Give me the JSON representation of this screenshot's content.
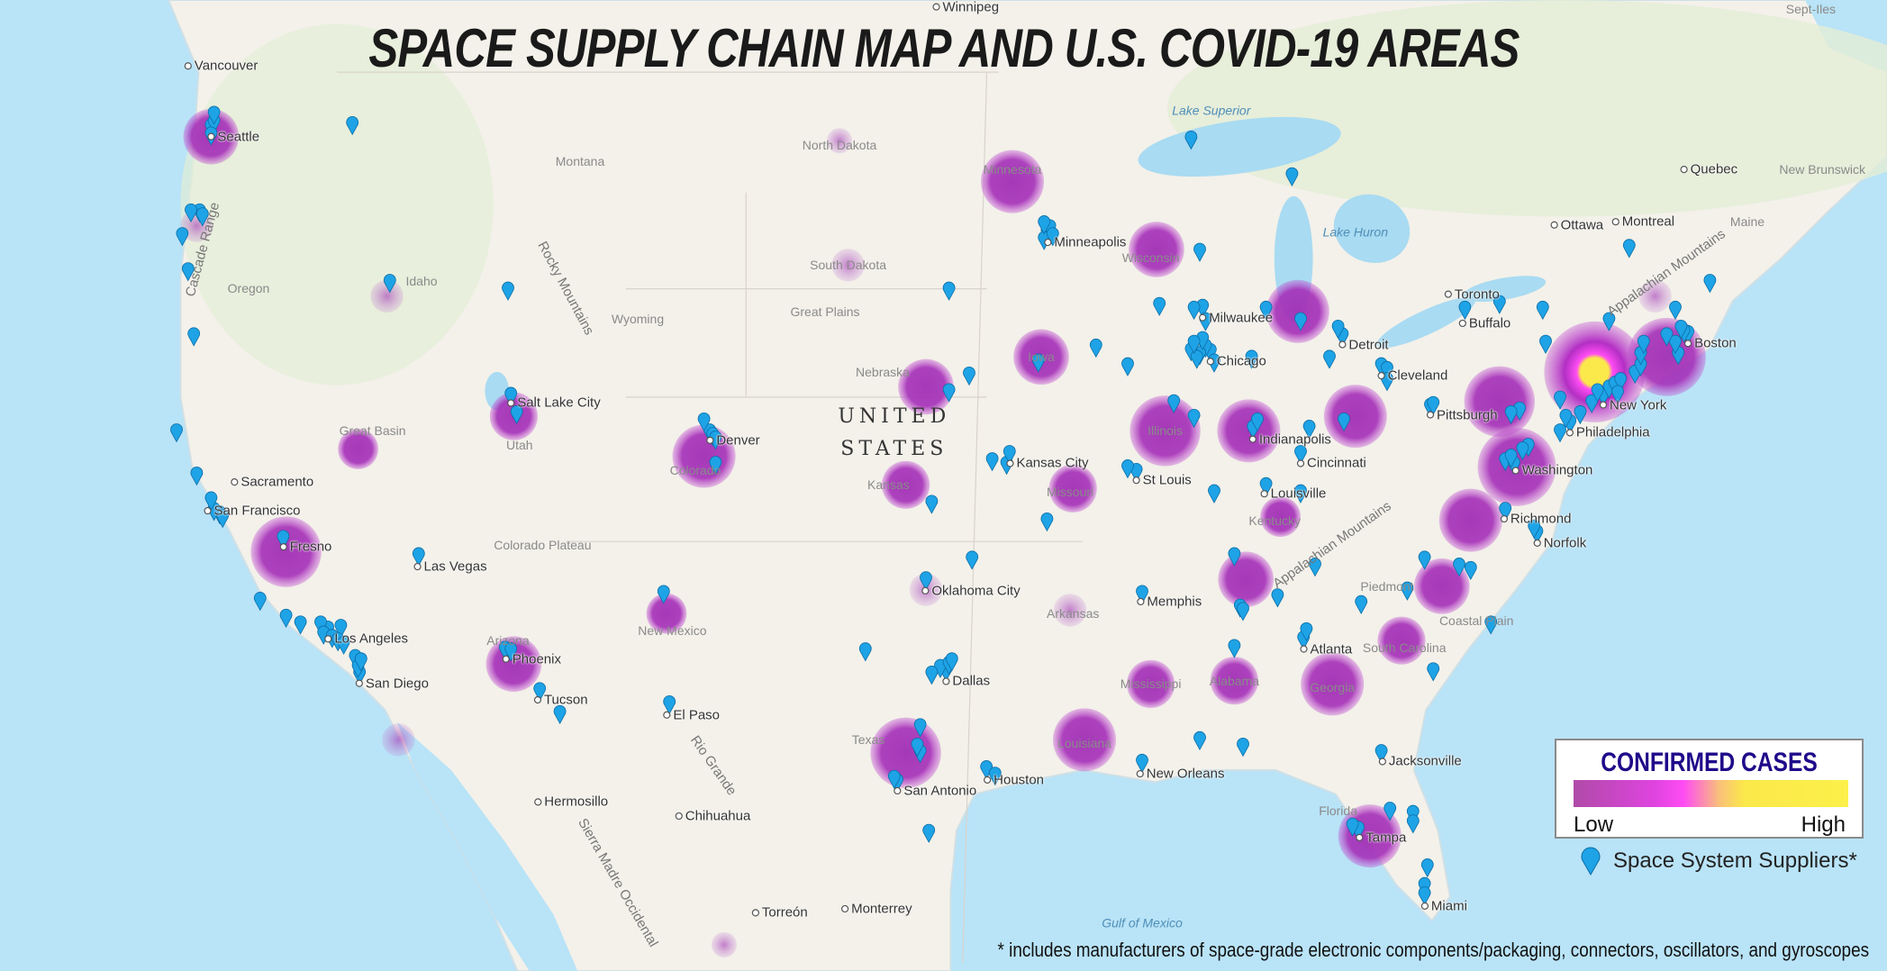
{
  "title": "SPACE SUPPLY CHAIN MAP AND U.S. COVID-19 AREAS",
  "legend": {
    "title": "CONFIRMED CASES",
    "low_label": "Low",
    "high_label": "High",
    "gradient_colors": [
      "#b04aa8",
      "#ff4cf4",
      "#fbe84a"
    ],
    "supplier_label": "Space System Suppliers*",
    "supplier_icon": "map-pin-icon",
    "supplier_color": "#1ea3e6"
  },
  "footnote": "* includes manufacturers of space-grade electronic components/packaging, connectors, oscillators, and gyroscopes",
  "colors": {
    "ocean": "#b9e3f7",
    "land": "#f3f1ea",
    "bubble": "#a02fb4",
    "bubble_hot": "#fbe84a",
    "pin": "#1ea3e6"
  },
  "covid_areas": [
    {
      "lat": 47.6,
      "lon": -122.3,
      "level": 4
    },
    {
      "lat": 45.4,
      "lon": -122.8,
      "level": 1
    },
    {
      "lat": 43.6,
      "lon": -116.2,
      "level": 1
    },
    {
      "lat": 47.5,
      "lon": -100.5,
      "level": 0
    },
    {
      "lat": 44.4,
      "lon": -100.2,
      "level": 1
    },
    {
      "lat": 46.5,
      "lon": -94.5,
      "level": 5
    },
    {
      "lat": 44.8,
      "lon": -89.5,
      "level": 4
    },
    {
      "lat": 43.2,
      "lon": -84.6,
      "level": 5
    },
    {
      "lat": 42,
      "lon": -93.5,
      "level": 4
    },
    {
      "lat": 41.2,
      "lon": -97.5,
      "level": 4
    },
    {
      "lat": 40,
      "lon": -89.2,
      "level": 6
    },
    {
      "lat": 40,
      "lon": -86.3,
      "level": 5
    },
    {
      "lat": 40.4,
      "lon": -82.6,
      "level": 5
    },
    {
      "lat": 40.8,
      "lon": -77.6,
      "level": 6
    },
    {
      "lat": 41.6,
      "lon": -74.3,
      "level": 10
    },
    {
      "lat": 42,
      "lon": -71.8,
      "level": 7
    },
    {
      "lat": 43.6,
      "lon": -72.2,
      "level": 1
    },
    {
      "lat": 39,
      "lon": -77,
      "level": 7
    },
    {
      "lat": 37.5,
      "lon": -78.6,
      "level": 5
    },
    {
      "lat": 35.6,
      "lon": -79.6,
      "level": 4
    },
    {
      "lat": 34,
      "lon": -81,
      "level": 3
    },
    {
      "lat": 32.7,
      "lon": -83.4,
      "level": 5
    },
    {
      "lat": 28,
      "lon": -82.1,
      "level": 5
    },
    {
      "lat": 32.8,
      "lon": -86.8,
      "level": 3
    },
    {
      "lat": 32.7,
      "lon": -89.7,
      "level": 3
    },
    {
      "lat": 31,
      "lon": -92,
      "level": 5
    },
    {
      "lat": 35.8,
      "lon": -86.4,
      "level": 4
    },
    {
      "lat": 37.6,
      "lon": -85.2,
      "level": 2
    },
    {
      "lat": 38.4,
      "lon": -92.4,
      "level": 3
    },
    {
      "lat": 38.5,
      "lon": -98.2,
      "level": 3
    },
    {
      "lat": 35.5,
      "lon": -97.5,
      "level": 1
    },
    {
      "lat": 34.9,
      "lon": -92.5,
      "level": 1
    },
    {
      "lat": 30.6,
      "lon": -98.2,
      "level": 6
    },
    {
      "lat": 39.3,
      "lon": -105.2,
      "level": 5
    },
    {
      "lat": 40.4,
      "lon": -111.8,
      "level": 3
    },
    {
      "lat": 39.5,
      "lon": -117.2,
      "level": 2
    },
    {
      "lat": 36.6,
      "lon": -119.7,
      "level": 6
    },
    {
      "lat": 33.3,
      "lon": -111.8,
      "level": 4
    },
    {
      "lat": 34.8,
      "lon": -106.5,
      "level": 2
    },
    {
      "lat": 31,
      "lon": -115.8,
      "level": 1
    },
    {
      "lat": 24.5,
      "lon": -104.5,
      "level": 0
    }
  ],
  "suppliers": [
    [
      47.6,
      -122.3
    ],
    [
      47.7,
      -122.2
    ],
    [
      47.4,
      -122.3
    ],
    [
      47.9,
      -122.2
    ],
    [
      47.65,
      -117.4
    ],
    [
      45.5,
      -122.7
    ],
    [
      45.5,
      -123
    ],
    [
      45.4,
      -122.6
    ],
    [
      44.9,
      -123.3
    ],
    [
      44,
      -123.1
    ],
    [
      42.3,
      -122.9
    ],
    [
      43.7,
      -116.1
    ],
    [
      43.5,
      -112
    ],
    [
      40.7,
      -111.9
    ],
    [
      40.2,
      -111.7
    ],
    [
      39.7,
      -105
    ],
    [
      40,
      -105.2
    ],
    [
      39.6,
      -104.9
    ],
    [
      38.8,
      -104.8
    ],
    [
      39.5,
      -104.8
    ],
    [
      39.7,
      -123.5
    ],
    [
      38.5,
      -122.8
    ],
    [
      37.4,
      -122
    ],
    [
      37.5,
      -122.2
    ],
    [
      37.8,
      -122.3
    ],
    [
      37.3,
      -121.9
    ],
    [
      36.7,
      -119.8
    ],
    [
      34.9,
      -120.6
    ],
    [
      34.05,
      -118.25
    ],
    [
      34.2,
      -118.5
    ],
    [
      33.9,
      -118.4
    ],
    [
      33.8,
      -118.1
    ],
    [
      34.1,
      -117.8
    ],
    [
      33.7,
      -117.9
    ],
    [
      33.6,
      -117.7
    ],
    [
      34.4,
      -119.7
    ],
    [
      34.2,
      -119.2
    ],
    [
      33.2,
      -117.3
    ],
    [
      32.7,
      -117.15
    ],
    [
      32.9,
      -117.2
    ],
    [
      33.1,
      -117.1
    ],
    [
      33.45,
      -112.1
    ],
    [
      33.4,
      -111.9
    ],
    [
      32.2,
      -110.9
    ],
    [
      31.5,
      -110.2
    ],
    [
      36.2,
      -115.1
    ],
    [
      35.1,
      -106.6
    ],
    [
      31.8,
      -106.4
    ],
    [
      33.4,
      -99.6
    ],
    [
      32.8,
      -96.8
    ],
    [
      32.9,
      -97
    ],
    [
      33,
      -96.7
    ],
    [
      32.7,
      -97.3
    ],
    [
      33.1,
      -96.6
    ],
    [
      30.3,
      -97.7
    ],
    [
      30.5,
      -97.8
    ],
    [
      29.4,
      -98.5
    ],
    [
      29.5,
      -98.6
    ],
    [
      29.8,
      -95.4
    ],
    [
      29.6,
      -95.1
    ],
    [
      27.8,
      -97.4
    ],
    [
      31.1,
      -97.7
    ],
    [
      35.5,
      -97.5
    ],
    [
      36.1,
      -95.9
    ],
    [
      38.8,
      -94.7
    ],
    [
      39.1,
      -94.6
    ],
    [
      37.7,
      -97.3
    ],
    [
      38.9,
      -95.2
    ],
    [
      41.25,
      -96
    ],
    [
      40.8,
      -96.7
    ],
    [
      41.6,
      -93.6
    ],
    [
      42,
      -91.6
    ],
    [
      44.98,
      -93.3
    ],
    [
      45.1,
      -93.2
    ],
    [
      44.8,
      -93.4
    ],
    [
      44.9,
      -93.1
    ],
    [
      45.2,
      -93.4
    ],
    [
      43.5,
      -96.7
    ],
    [
      43.1,
      -89.4
    ],
    [
      43.05,
      -87.9
    ],
    [
      43,
      -88.2
    ],
    [
      42.7,
      -87.8
    ],
    [
      44.5,
      -88
    ],
    [
      42.3,
      -83.05
    ],
    [
      42.5,
      -83.2
    ],
    [
      42.7,
      -84.5
    ],
    [
      43,
      -85.7
    ],
    [
      47.3,
      -88.3
    ],
    [
      46.4,
      -84.8
    ],
    [
      41.88,
      -87.63
    ],
    [
      42,
      -87.8
    ],
    [
      41.8,
      -88
    ],
    [
      41.9,
      -88.3
    ],
    [
      41.6,
      -87.5
    ],
    [
      42.2,
      -87.9
    ],
    [
      41.7,
      -88.1
    ],
    [
      42.1,
      -88.2
    ],
    [
      40.5,
      -88.9
    ],
    [
      40.1,
      -88.2
    ],
    [
      41.5,
      -90.5
    ],
    [
      39.8,
      -86.15
    ],
    [
      40,
      -86
    ],
    [
      41.7,
      -86.2
    ],
    [
      38,
      -87.5
    ],
    [
      39.1,
      -84.5
    ],
    [
      39.8,
      -84.2
    ],
    [
      41.5,
      -81.7
    ],
    [
      41.4,
      -81.5
    ],
    [
      40,
      -83
    ],
    [
      41.1,
      -81.5
    ],
    [
      41.7,
      -83.5
    ],
    [
      38.6,
      -90.2
    ],
    [
      38.7,
      -90.5
    ],
    [
      37.2,
      -93.3
    ],
    [
      38.2,
      -85.7
    ],
    [
      38,
      -84.5
    ],
    [
      35.1,
      -90
    ],
    [
      36.2,
      -86.8
    ],
    [
      35.9,
      -84
    ],
    [
      35,
      -85.3
    ],
    [
      34.7,
      -86.6
    ],
    [
      34.6,
      -86.5
    ],
    [
      33.5,
      -86.8
    ],
    [
      30.7,
      -88
    ],
    [
      33.75,
      -84.4
    ],
    [
      34,
      -84.3
    ],
    [
      30,
      -90
    ],
    [
      30.5,
      -86.5
    ],
    [
      28.5,
      -81.4
    ],
    [
      28.4,
      -80.6
    ],
    [
      28.1,
      -80.6
    ],
    [
      27.9,
      -82.5
    ],
    [
      28,
      -82.7
    ],
    [
      26.7,
      -80.1
    ],
    [
      26.1,
      -80.2
    ],
    [
      25.8,
      -80.2
    ],
    [
      30.3,
      -81.7
    ],
    [
      35.2,
      -80.8
    ],
    [
      35.8,
      -78.6
    ],
    [
      35.9,
      -79
    ],
    [
      36.1,
      -80.2
    ],
    [
      34.2,
      -77.9
    ],
    [
      34.8,
      -82.4
    ],
    [
      32.8,
      -79.9
    ],
    [
      37.5,
      -77.4
    ],
    [
      36.85,
      -76.3
    ],
    [
      37,
      -76.4
    ],
    [
      38.9,
      -77.4
    ],
    [
      38.8,
      -77.1
    ],
    [
      39,
      -77.2
    ],
    [
      39.3,
      -76.6
    ],
    [
      39.2,
      -76.8
    ],
    [
      39.95,
      -75.15
    ],
    [
      40.1,
      -75.3
    ],
    [
      40.2,
      -74.8
    ],
    [
      40.5,
      -74.4
    ],
    [
      40.7,
      -74
    ],
    [
      40.8,
      -74.2
    ],
    [
      40.9,
      -73.8
    ],
    [
      41,
      -73.6
    ],
    [
      41.1,
      -73.4
    ],
    [
      40.75,
      -73.5
    ],
    [
      41.3,
      -72.9
    ],
    [
      41.5,
      -72.7
    ],
    [
      41.8,
      -72.7
    ],
    [
      41.8,
      -71.4
    ],
    [
      42.1,
      -71.5
    ],
    [
      42.36,
      -71.06
    ],
    [
      42.4,
      -71.2
    ],
    [
      42.5,
      -71.3
    ],
    [
      42.3,
      -71.8
    ],
    [
      42.1,
      -72.6
    ],
    [
      40.4,
      -80
    ],
    [
      40.45,
      -79.9
    ],
    [
      40.3,
      -76.9
    ],
    [
      40.6,
      -75.5
    ],
    [
      43,
      -78.8
    ],
    [
      43.15,
      -77.6
    ],
    [
      43,
      -76.1
    ],
    [
      42.1,
      -76
    ],
    [
      42.7,
      -73.8
    ],
    [
      44.6,
      -73.1
    ],
    [
      43,
      -71.5
    ],
    [
      43.7,
      -70.3
    ],
    [
      39.7,
      -75.5
    ],
    [
      40.2,
      -77.2
    ]
  ],
  "labels": [
    {
      "text": "Vancouver",
      "lat": 49.28,
      "lon": -123.1,
      "kind": "city"
    },
    {
      "text": "Seattle",
      "lat": 47.6,
      "lon": -122.3,
      "kind": "city"
    },
    {
      "text": "Winnipeg",
      "lat": 49.9,
      "lon": -97.14,
      "kind": "city"
    },
    {
      "text": "Minneapolis",
      "lat": 44.98,
      "lon": -93.27,
      "kind": "city"
    },
    {
      "text": "Milwaukee",
      "lat": 43.04,
      "lon": -87.9,
      "kind": "city"
    },
    {
      "text": "Chicago",
      "lat": 41.88,
      "lon": -87.63,
      "kind": "city"
    },
    {
      "text": "Detroit",
      "lat": 42.33,
      "lon": -83.05,
      "kind": "city"
    },
    {
      "text": "Toronto",
      "lat": 43.65,
      "lon": -79.38,
      "kind": "city"
    },
    {
      "text": "Buffalo",
      "lat": 42.89,
      "lon": -78.88,
      "kind": "city"
    },
    {
      "text": "Ottawa",
      "lat": 45.42,
      "lon": -75.7,
      "kind": "city"
    },
    {
      "text": "Montreal",
      "lat": 45.5,
      "lon": -73.57,
      "kind": "city"
    },
    {
      "text": "Quebec",
      "lat": 46.8,
      "lon": -71.2,
      "kind": "city"
    },
    {
      "text": "Boston",
      "lat": 42.36,
      "lon": -71.06,
      "kind": "city"
    },
    {
      "text": "Cleveland",
      "lat": 41.5,
      "lon": -81.7,
      "kind": "city"
    },
    {
      "text": "Pittsburgh",
      "lat": 40.44,
      "lon": -80,
      "kind": "city"
    },
    {
      "text": "New York",
      "lat": 40.71,
      "lon": -74,
      "kind": "city"
    },
    {
      "text": "Philadelphia",
      "lat": 39.95,
      "lon": -75.16,
      "kind": "city"
    },
    {
      "text": "Washington",
      "lat": 38.9,
      "lon": -77.04,
      "kind": "city"
    },
    {
      "text": "Richmond",
      "lat": 37.54,
      "lon": -77.44,
      "kind": "city"
    },
    {
      "text": "Norfolk",
      "lat": 36.85,
      "lon": -76.29,
      "kind": "city"
    },
    {
      "text": "Salt Lake City",
      "lat": 40.76,
      "lon": -111.9,
      "kind": "city"
    },
    {
      "text": "Denver",
      "lat": 39.74,
      "lon": -104.99,
      "kind": "city"
    },
    {
      "text": "Kansas City",
      "lat": 39.1,
      "lon": -94.58,
      "kind": "city"
    },
    {
      "text": "St Louis",
      "lat": 38.63,
      "lon": -90.2,
      "kind": "city"
    },
    {
      "text": "Indianapolis",
      "lat": 39.77,
      "lon": -86.16,
      "kind": "city"
    },
    {
      "text": "Cincinnati",
      "lat": 39.1,
      "lon": -84.5,
      "kind": "city"
    },
    {
      "text": "Louisville",
      "lat": 38.25,
      "lon": -85.76,
      "kind": "city"
    },
    {
      "text": "Sacramento",
      "lat": 38.58,
      "lon": -121.49,
      "kind": "city"
    },
    {
      "text": "San Francisco",
      "lat": 37.77,
      "lon": -122.42,
      "kind": "city"
    },
    {
      "text": "Fresno",
      "lat": 36.74,
      "lon": -119.79,
      "kind": "city"
    },
    {
      "text": "Las Vegas",
      "lat": 36.17,
      "lon": -115.14,
      "kind": "city"
    },
    {
      "text": "Oklahoma City",
      "lat": 35.47,
      "lon": -97.52,
      "kind": "city"
    },
    {
      "text": "Memphis",
      "lat": 35.15,
      "lon": -90.05,
      "kind": "city"
    },
    {
      "text": "Phoenix",
      "lat": 33.45,
      "lon": -112.07,
      "kind": "city"
    },
    {
      "text": "Los Angeles",
      "lat": 34.05,
      "lon": -118.24,
      "kind": "city"
    },
    {
      "text": "San Diego",
      "lat": 32.72,
      "lon": -117.16,
      "kind": "city"
    },
    {
      "text": "Tucson",
      "lat": 32.22,
      "lon": -110.97,
      "kind": "city"
    },
    {
      "text": "El Paso",
      "lat": 31.76,
      "lon": -106.49,
      "kind": "city"
    },
    {
      "text": "Dallas",
      "lat": 32.78,
      "lon": -96.8,
      "kind": "city"
    },
    {
      "text": "Atlanta",
      "lat": 33.75,
      "lon": -84.39,
      "kind": "city"
    },
    {
      "text": "Houston",
      "lat": 29.76,
      "lon": -95.37,
      "kind": "city"
    },
    {
      "text": "New Orleans",
      "lat": 29.95,
      "lon": -90.07,
      "kind": "city"
    },
    {
      "text": "Jacksonville",
      "lat": 30.33,
      "lon": -81.66,
      "kind": "city"
    },
    {
      "text": "Tampa",
      "lat": 27.95,
      "lon": -82.46,
      "kind": "city"
    },
    {
      "text": "Miami",
      "lat": 25.76,
      "lon": -80.19,
      "kind": "city"
    },
    {
      "text": "San Antonio",
      "lat": 29.42,
      "lon": -98.49,
      "kind": "city"
    },
    {
      "text": "Hermosillo",
      "lat": 29.07,
      "lon": -110.96,
      "kind": "city"
    },
    {
      "text": "Chihuahua",
      "lat": 28.63,
      "lon": -106.07,
      "kind": "city"
    },
    {
      "text": "Torreón",
      "lat": 25.54,
      "lon": -103.41,
      "kind": "city"
    },
    {
      "text": "Monterrey",
      "lat": 25.67,
      "lon": -100.31,
      "kind": "city"
    },
    {
      "text": "Montana",
      "lat": 47,
      "lon": -109.5,
      "kind": "region"
    },
    {
      "text": "North Dakota",
      "lat": 47.4,
      "lon": -100.5,
      "kind": "region"
    },
    {
      "text": "Minnesota",
      "lat": 46.8,
      "lon": -94.5,
      "kind": "region"
    },
    {
      "text": "South Dakota",
      "lat": 44.4,
      "lon": -100.2,
      "kind": "region"
    },
    {
      "text": "Wisconsin",
      "lat": 44.6,
      "lon": -89.7,
      "kind": "region"
    },
    {
      "text": "Idaho",
      "lat": 44,
      "lon": -115,
      "kind": "region"
    },
    {
      "text": "Oregon",
      "lat": 43.8,
      "lon": -121,
      "kind": "region"
    },
    {
      "text": "Wyoming",
      "lat": 43,
      "lon": -107.5,
      "kind": "region"
    },
    {
      "text": "Great Plains",
      "lat": 43.2,
      "lon": -101,
      "kind": "region"
    },
    {
      "text": "Nebraska",
      "lat": 41.6,
      "lon": -99,
      "kind": "region"
    },
    {
      "text": "Iowa",
      "lat": 42,
      "lon": -93.5,
      "kind": "region"
    },
    {
      "text": "Utah",
      "lat": 39.6,
      "lon": -111.6,
      "kind": "region"
    },
    {
      "text": "Great Basin",
      "lat": 40,
      "lon": -116.7,
      "kind": "region"
    },
    {
      "text": "Colorado",
      "lat": 38.9,
      "lon": -105.5,
      "kind": "region"
    },
    {
      "text": "Kansas",
      "lat": 38.5,
      "lon": -98.8,
      "kind": "region"
    },
    {
      "text": "Missouri",
      "lat": 38.3,
      "lon": -92.5,
      "kind": "region"
    },
    {
      "text": "Illinois",
      "lat": 40,
      "lon": -89.2,
      "kind": "region"
    },
    {
      "text": "Kentucky",
      "lat": 37.5,
      "lon": -85.4,
      "kind": "region"
    },
    {
      "text": "Colorado Plateau",
      "lat": 36.8,
      "lon": -110.8,
      "kind": "region"
    },
    {
      "text": "Arizona",
      "lat": 34,
      "lon": -112,
      "kind": "region"
    },
    {
      "text": "New Mexico",
      "lat": 34.3,
      "lon": -106.3,
      "kind": "region"
    },
    {
      "text": "Arkansas",
      "lat": 34.8,
      "lon": -92.4,
      "kind": "region"
    },
    {
      "text": "Mississippi",
      "lat": 32.7,
      "lon": -89.7,
      "kind": "region"
    },
    {
      "text": "Alabama",
      "lat": 32.8,
      "lon": -86.8,
      "kind": "region"
    },
    {
      "text": "Georgia",
      "lat": 32.6,
      "lon": -83.4,
      "kind": "region"
    },
    {
      "text": "South Carolina",
      "lat": 33.8,
      "lon": -80.9,
      "kind": "region"
    },
    {
      "text": "Piedmont",
      "lat": 35.6,
      "lon": -81.5,
      "kind": "region"
    },
    {
      "text": "Coastal Plain",
      "lat": 34.6,
      "lon": -78.4,
      "kind": "region"
    },
    {
      "text": "Texas",
      "lat": 31,
      "lon": -99.5,
      "kind": "region"
    },
    {
      "text": "Louisiana",
      "lat": 30.9,
      "lon": -92,
      "kind": "region"
    },
    {
      "text": "Florida",
      "lat": 28.8,
      "lon": -83.2,
      "kind": "region"
    },
    {
      "text": "Maine",
      "lat": 45.5,
      "lon": -69,
      "kind": "region"
    },
    {
      "text": "New Brunswick",
      "lat": 46.8,
      "lon": -66.4,
      "kind": "region"
    },
    {
      "text": "Sept-Iles",
      "lat": 50.6,
      "lon": -66.8,
      "kind": "region"
    },
    {
      "text": "Rocky Mountains",
      "lat": 43.8,
      "lon": -109.3,
      "kind": "mountain"
    },
    {
      "text": "Appalachian Mountains",
      "lat": 36.8,
      "lon": -83.4,
      "kind": "mountain"
    },
    {
      "text": "Appalachian Mountains",
      "lat": 44.2,
      "lon": -71.8,
      "kind": "mountain"
    },
    {
      "text": "Cascade Range",
      "lat": 44.8,
      "lon": -122.6,
      "kind": "mountain"
    },
    {
      "text": "Rio Grande",
      "lat": 30.6,
      "lon": -105.2,
      "kind": "mountain"
    },
    {
      "text": "Sierra Madre Occidental",
      "lat": 26.5,
      "lon": -108.2,
      "kind": "mountain"
    },
    {
      "text": "Lake Superior",
      "lat": 48,
      "lon": -87.6,
      "kind": "water"
    },
    {
      "text": "Lake Huron",
      "lat": 45,
      "lon": -82.6,
      "kind": "water"
    },
    {
      "text": "Gulf of Mexico",
      "lat": 24.9,
      "lon": -90,
      "kind": "water"
    },
    {
      "text": "UNITED STATES",
      "lat": 39.3,
      "lon": -98.6,
      "kind": "country"
    }
  ]
}
